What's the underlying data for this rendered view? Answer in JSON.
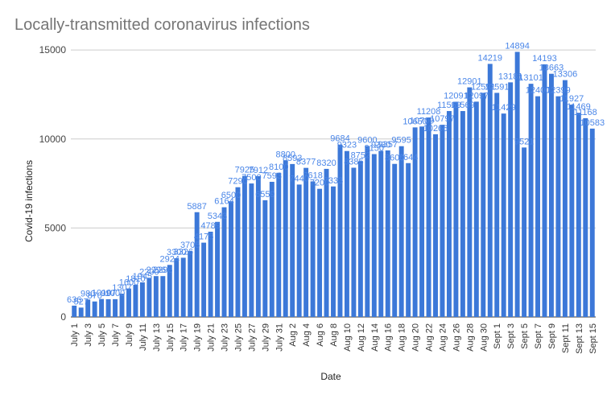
{
  "chart_data": {
    "type": "bar",
    "title": "Locally-transmitted coronavirus infections",
    "x_label": "Date",
    "y_label": "Covid-19 infections",
    "categories": [
      "July 1",
      null,
      "July 3",
      null,
      "July 5",
      null,
      "July 7",
      null,
      "July 9",
      null,
      "July 11",
      null,
      "July 13",
      null,
      "July 15",
      null,
      "July 17",
      null,
      "July 19",
      null,
      "July 21",
      null,
      "July 23",
      null,
      "July 25",
      null,
      "July 27",
      null,
      "July 29",
      null,
      "July 31",
      null,
      "Aug 2",
      null,
      "Aug 4",
      null,
      "Aug 6",
      null,
      "Aug 8",
      null,
      "Aug 10",
      null,
      "Aug 12",
      null,
      "Aug 14",
      null,
      "Aug 16",
      null,
      "Aug 18",
      null,
      "Aug 20",
      null,
      "Aug 22",
      null,
      "Aug 24",
      null,
      "Aug 26",
      null,
      "Aug 28",
      null,
      "Aug 30",
      null,
      "Sept 1",
      null,
      "Sept 3",
      null,
      "Sept 5",
      null,
      "Sept 7",
      null,
      "Sept 9",
      null,
      "Sept 11",
      null,
      "Sept 13",
      null,
      "Sept 15"
    ],
    "values": [
      636,
      527,
      980,
      870,
      1010,
      997,
      1000,
      1307,
      1600,
      1810,
      1945,
      2200,
      2296,
      2296,
      2924,
      3300,
      3326,
      3705,
      5887,
      4175,
      4789,
      5343,
      6164,
      6500,
      7290,
      7925,
      7500,
      7912,
      6559,
      7593,
      8100,
      8800,
      8593,
      7440,
      8377,
      7618,
      7200,
      8320,
      7333,
      9684,
      9323,
      8385,
      8752,
      9600,
      9150,
      9330,
      9357,
      8600,
      9595,
      8644,
      10650,
      10700,
      11208,
      10266,
      10797,
      11569,
      12091,
      11569,
      12901,
      12097,
      12591,
      14219,
      12591,
      11429,
      13181,
      14894,
      9521,
      13101,
      12400,
      14193,
      13663,
      12399,
      13306,
      11927,
      11469,
      11168,
      10583
    ],
    "color": "#3c78d8",
    "label_color": "#4a86e8",
    "ylim": [
      0,
      16000
    ],
    "yticks": [
      0,
      5000,
      10000,
      15000
    ],
    "grid": true
  }
}
